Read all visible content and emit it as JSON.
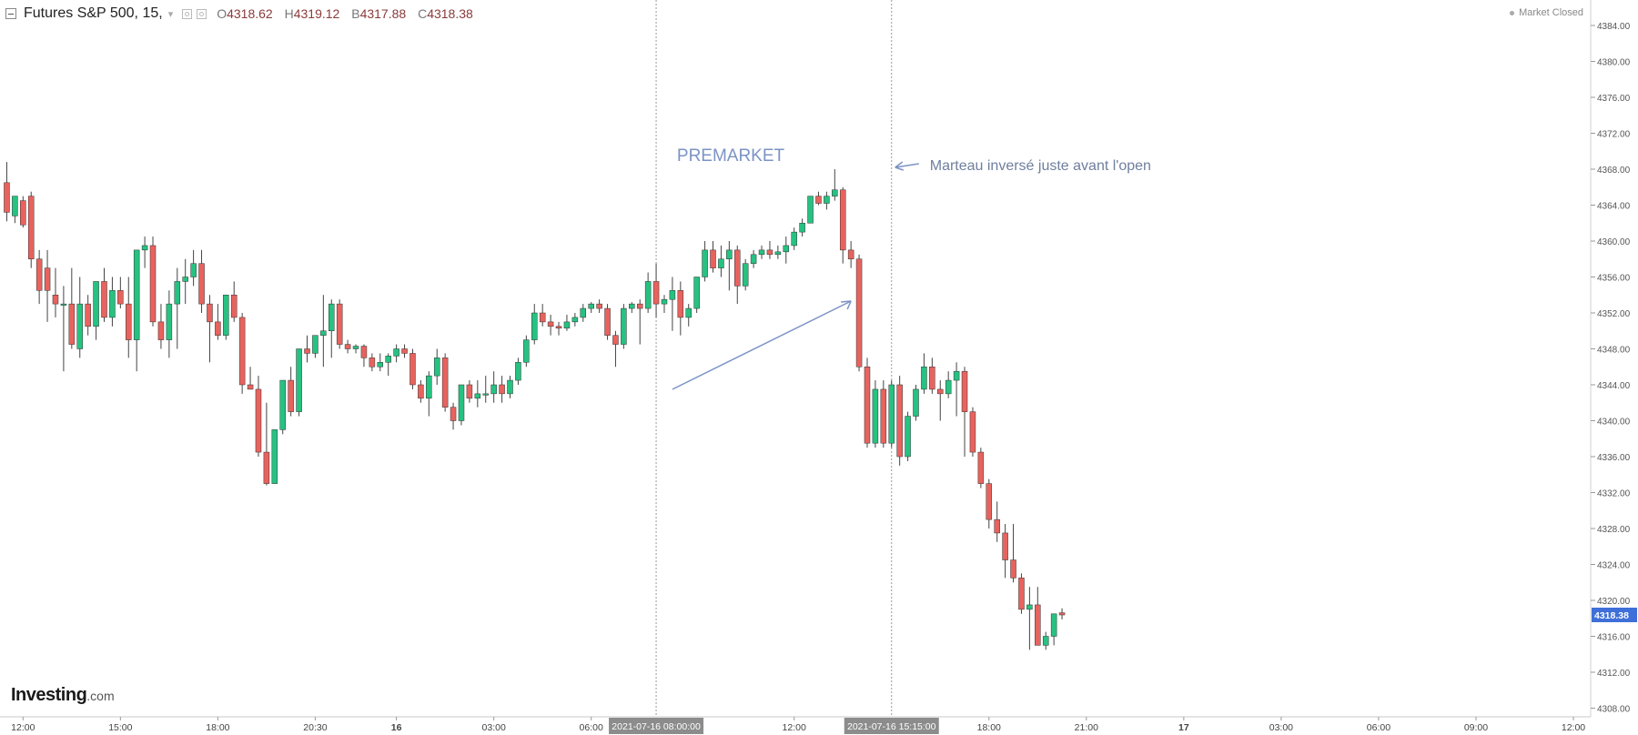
{
  "header": {
    "symbol": "Futures S&P 500, 15,",
    "open_label": "O",
    "open": "4318.62",
    "high_label": "H",
    "high": "4319.12",
    "low_label": "B",
    "low": "4317.88",
    "close_label": "C",
    "close": "4318.38",
    "status": "Market Closed"
  },
  "brand": {
    "name": "Investing",
    "suffix": ".com"
  },
  "colors": {
    "up": "#26c281",
    "down": "#e8635e",
    "annotation": "#7b93c4",
    "wick": "#444444",
    "price_tag": "#3f6fd8"
  },
  "chart_data": {
    "type": "candlestick",
    "ylim": [
      4306,
      4386
    ],
    "y_ticks": [
      "4384.00",
      "4380.00",
      "4376.00",
      "4372.00",
      "4368.00",
      "4364.00",
      "4360.00",
      "4356.00",
      "4352.00",
      "4348.00",
      "4344.00",
      "4340.00",
      "4336.00",
      "4332.00",
      "4328.00",
      "4324.00",
      "4320.00",
      "4316.00",
      "4312.00",
      "4308.00"
    ],
    "x_ticks": [
      {
        "bar": 2,
        "label": "12:00"
      },
      {
        "bar": 14,
        "label": "15:00"
      },
      {
        "bar": 26,
        "label": "18:00"
      },
      {
        "bar": 38,
        "label": "20:30"
      },
      {
        "bar": 48,
        "label": "16"
      },
      {
        "bar": 60,
        "label": "03:00"
      },
      {
        "bar": 72,
        "label": "06:00"
      },
      {
        "bar": 97,
        "label": "12:00"
      },
      {
        "bar": 121,
        "label": "18:00"
      },
      {
        "bar": 133,
        "label": "21:00"
      },
      {
        "bar": 145,
        "label": "17"
      },
      {
        "bar": 157,
        "label": "03:00"
      },
      {
        "bar": 169,
        "label": "06:00"
      },
      {
        "bar": 181,
        "label": "09:00"
      },
      {
        "bar": 193,
        "label": "12:00"
      }
    ],
    "vlines": [
      {
        "bar": 80,
        "label": "2021-07-16 08:00:00"
      },
      {
        "bar": 109,
        "label": "2021-07-16 15:15:00"
      }
    ],
    "last_price": "4318.38",
    "annotations": {
      "premarket": "PREMARKET",
      "note": "Marteau inversé juste avant l'open"
    },
    "ohlc": [
      [
        4366.5,
        4368.8,
        4362.2,
        4363.2
      ],
      [
        4362.8,
        4365.0,
        4362.0,
        4365.0
      ],
      [
        4364.5,
        4365.0,
        4361.5,
        4361.8
      ],
      [
        4365.0,
        4365.5,
        4357.0,
        4358.0
      ],
      [
        4358.0,
        4359.0,
        4353.0,
        4354.5
      ],
      [
        4357.0,
        4359.0,
        4351.0,
        4354.5
      ],
      [
        4354.0,
        4357.0,
        4351.5,
        4353.0
      ],
      [
        4353.0,
        4355.0,
        4345.5,
        4353.0
      ],
      [
        4353.0,
        4357.0,
        4348.0,
        4348.5
      ],
      [
        4348.0,
        4356.0,
        4347.0,
        4353.0
      ],
      [
        4353.0,
        4354.0,
        4349.5,
        4350.5
      ],
      [
        4350.5,
        4355.0,
        4349.0,
        4355.5
      ],
      [
        4355.5,
        4357.0,
        4351.0,
        4351.5
      ],
      [
        4351.5,
        4356.0,
        4350.5,
        4354.5
      ],
      [
        4354.5,
        4356.0,
        4352.5,
        4353.0
      ],
      [
        4353.0,
        4356.0,
        4347.0,
        4349.0
      ],
      [
        4349.0,
        4359.0,
        4345.5,
        4359.0
      ],
      [
        4359.0,
        4360.5,
        4357.0,
        4359.5
      ],
      [
        4359.5,
        4360.5,
        4350.5,
        4351.0
      ],
      [
        4351.0,
        4353.0,
        4348.0,
        4349.0
      ],
      [
        4349.0,
        4354.5,
        4347.0,
        4353.0
      ],
      [
        4353.0,
        4357.0,
        4348.0,
        4355.5
      ],
      [
        4355.5,
        4358.0,
        4353.0,
        4356.0
      ],
      [
        4356.0,
        4359.0,
        4355.0,
        4357.5
      ],
      [
        4357.5,
        4359.0,
        4352.0,
        4353.0
      ],
      [
        4353.0,
        4354.0,
        4346.5,
        4351.0
      ],
      [
        4351.0,
        4353.0,
        4349.0,
        4349.5
      ],
      [
        4349.5,
        4354.0,
        4349.0,
        4354.0
      ],
      [
        4354.0,
        4355.5,
        4351.0,
        4351.5
      ],
      [
        4351.5,
        4352.0,
        4343.0,
        4344.0
      ],
      [
        4344.0,
        4346.0,
        4343.5,
        4343.5
      ],
      [
        4343.5,
        4345.0,
        4336.0,
        4336.5
      ],
      [
        4336.5,
        4342.0,
        4332.8,
        4333.0
      ],
      [
        4333.0,
        4339.0,
        4333.0,
        4339.0
      ],
      [
        4339.0,
        4344.5,
        4338.5,
        4344.5
      ],
      [
        4344.5,
        4346.0,
        4340.5,
        4341.0
      ],
      [
        4341.0,
        4348.0,
        4340.5,
        4348.0
      ],
      [
        4348.0,
        4349.5,
        4346.5,
        4347.5
      ],
      [
        4347.5,
        4349.5,
        4347.0,
        4349.5
      ],
      [
        4349.5,
        4354.0,
        4346.0,
        4350.0
      ],
      [
        4350.0,
        4353.5,
        4347.0,
        4353.0
      ],
      [
        4353.0,
        4353.5,
        4348.0,
        4348.5
      ],
      [
        4348.5,
        4349.0,
        4347.5,
        4348.0
      ],
      [
        4348.0,
        4348.5,
        4347.5,
        4348.3
      ],
      [
        4348.3,
        4348.5,
        4346.0,
        4347.0
      ],
      [
        4347.0,
        4347.5,
        4345.5,
        4346.0
      ],
      [
        4346.0,
        4347.5,
        4345.5,
        4346.5
      ],
      [
        4346.5,
        4347.5,
        4345.0,
        4347.2
      ],
      [
        4347.2,
        4348.5,
        4346.5,
        4348.0
      ],
      [
        4348.0,
        4348.5,
        4347.0,
        4347.5
      ],
      [
        4347.5,
        4348.0,
        4343.5,
        4344.0
      ],
      [
        4344.0,
        4344.5,
        4342.0,
        4342.5
      ],
      [
        4342.5,
        4345.5,
        4340.5,
        4345.0
      ],
      [
        4345.0,
        4348.0,
        4344.0,
        4347.0
      ],
      [
        4347.0,
        4347.5,
        4341.0,
        4341.5
      ],
      [
        4341.5,
        4342.0,
        4339.0,
        4340.0
      ],
      [
        4340.0,
        4344.0,
        4339.5,
        4344.0
      ],
      [
        4344.0,
        4344.5,
        4342.0,
        4342.5
      ],
      [
        4342.5,
        4344.5,
        4341.5,
        4343.0
      ],
      [
        4343.0,
        4345.0,
        4342.0,
        4343.0
      ],
      [
        4343.0,
        4345.5,
        4342.0,
        4344.0
      ],
      [
        4344.0,
        4345.0,
        4342.0,
        4343.0
      ],
      [
        4343.0,
        4345.0,
        4342.5,
        4344.5
      ],
      [
        4344.5,
        4347.0,
        4344.0,
        4346.5
      ],
      [
        4346.5,
        4349.5,
        4346.0,
        4349.0
      ],
      [
        4349.0,
        4353.0,
        4348.5,
        4352.0
      ],
      [
        4352.0,
        4353.0,
        4350.5,
        4351.0
      ],
      [
        4351.0,
        4351.8,
        4349.5,
        4350.5
      ],
      [
        4350.5,
        4351.0,
        4349.5,
        4350.3
      ],
      [
        4350.3,
        4351.8,
        4350.0,
        4351.0
      ],
      [
        4351.0,
        4352.0,
        4350.5,
        4351.5
      ],
      [
        4351.5,
        4353.0,
        4351.0,
        4352.5
      ],
      [
        4352.5,
        4353.2,
        4352.0,
        4353.0
      ],
      [
        4353.0,
        4353.5,
        4352.0,
        4352.5
      ],
      [
        4352.5,
        4353.0,
        4349.0,
        4349.5
      ],
      [
        4349.5,
        4350.0,
        4346.0,
        4348.5
      ],
      [
        4348.5,
        4353.0,
        4348.0,
        4352.5
      ],
      [
        4352.5,
        4353.2,
        4352.0,
        4353.0
      ],
      [
        4353.0,
        4353.5,
        4348.5,
        4352.5
      ],
      [
        4352.5,
        4356.5,
        4352.0,
        4355.5
      ],
      [
        4355.5,
        4357.5,
        4351.5,
        4353.0
      ],
      [
        4353.0,
        4354.0,
        4352.0,
        4353.5
      ],
      [
        4353.5,
        4356.0,
        4350.0,
        4354.5
      ],
      [
        4354.5,
        4355.5,
        4349.5,
        4351.5
      ],
      [
        4351.5,
        4353.0,
        4350.5,
        4352.5
      ],
      [
        4352.5,
        4356.0,
        4352.0,
        4356.0
      ],
      [
        4356.0,
        4360.0,
        4355.5,
        4359.0
      ],
      [
        4359.0,
        4360.0,
        4356.5,
        4357.0
      ],
      [
        4357.0,
        4359.5,
        4356.0,
        4358.0
      ],
      [
        4358.0,
        4360.0,
        4354.5,
        4359.0
      ],
      [
        4359.0,
        4359.5,
        4353.0,
        4355.0
      ],
      [
        4355.0,
        4358.0,
        4354.5,
        4357.5
      ],
      [
        4357.5,
        4359.0,
        4357.0,
        4358.5
      ],
      [
        4358.5,
        4359.5,
        4358.0,
        4359.0
      ],
      [
        4359.0,
        4360.0,
        4358.0,
        4358.5
      ],
      [
        4358.5,
        4359.5,
        4358.0,
        4358.8
      ],
      [
        4358.8,
        4360.5,
        4357.5,
        4359.5
      ],
      [
        4359.5,
        4361.5,
        4359.0,
        4361.0
      ],
      [
        4361.0,
        4362.5,
        4360.5,
        4362.0
      ],
      [
        4362.0,
        4365.0,
        4362.0,
        4365.0
      ],
      [
        4365.0,
        4365.5,
        4364.0,
        4364.2
      ],
      [
        4364.2,
        4365.5,
        4363.5,
        4365.0
      ],
      [
        4365.0,
        4368.0,
        4364.5,
        4365.7
      ],
      [
        4365.7,
        4366.0,
        4357.5,
        4359.0
      ],
      [
        4359.0,
        4360.0,
        4357.0,
        4358.0
      ],
      [
        4358.0,
        4358.5,
        4345.5,
        4346.0
      ],
      [
        4346.0,
        4347.0,
        4337.0,
        4337.5
      ],
      [
        4337.5,
        4344.5,
        4337.0,
        4343.5
      ],
      [
        4343.5,
        4344.5,
        4337.0,
        4337.5
      ],
      [
        4337.5,
        4344.5,
        4337.0,
        4344.0
      ],
      [
        4344.0,
        4345.0,
        4335.0,
        4336.0
      ],
      [
        4336.0,
        4341.0,
        4335.5,
        4340.5
      ],
      [
        4340.5,
        4344.0,
        4340.0,
        4343.5
      ],
      [
        4343.5,
        4347.5,
        4343.0,
        4346.0
      ],
      [
        4346.0,
        4347.0,
        4343.0,
        4343.5
      ],
      [
        4343.5,
        4344.5,
        4340.0,
        4343.0
      ],
      [
        4343.0,
        4345.5,
        4342.5,
        4344.5
      ],
      [
        4344.5,
        4346.5,
        4340.5,
        4345.5
      ],
      [
        4345.5,
        4346.0,
        4336.0,
        4341.0
      ],
      [
        4341.0,
        4341.5,
        4336.0,
        4336.5
      ],
      [
        4336.5,
        4337.0,
        4332.5,
        4333.0
      ],
      [
        4333.0,
        4333.5,
        4328.0,
        4329.0
      ],
      [
        4329.0,
        4331.0,
        4326.5,
        4327.5
      ],
      [
        4327.5,
        4328.5,
        4322.5,
        4324.5
      ],
      [
        4324.5,
        4328.5,
        4322.0,
        4322.5
      ],
      [
        4322.5,
        4323.0,
        4318.5,
        4319.0
      ],
      [
        4319.0,
        4321.5,
        4314.5,
        4319.5
      ],
      [
        4319.5,
        4321.5,
        4315.0,
        4315.0
      ],
      [
        4315.0,
        4316.5,
        4314.5,
        4316.0
      ],
      [
        4316.0,
        4318.5,
        4315.0,
        4318.5
      ],
      [
        4318.62,
        4319.12,
        4317.88,
        4318.38
      ]
    ]
  }
}
